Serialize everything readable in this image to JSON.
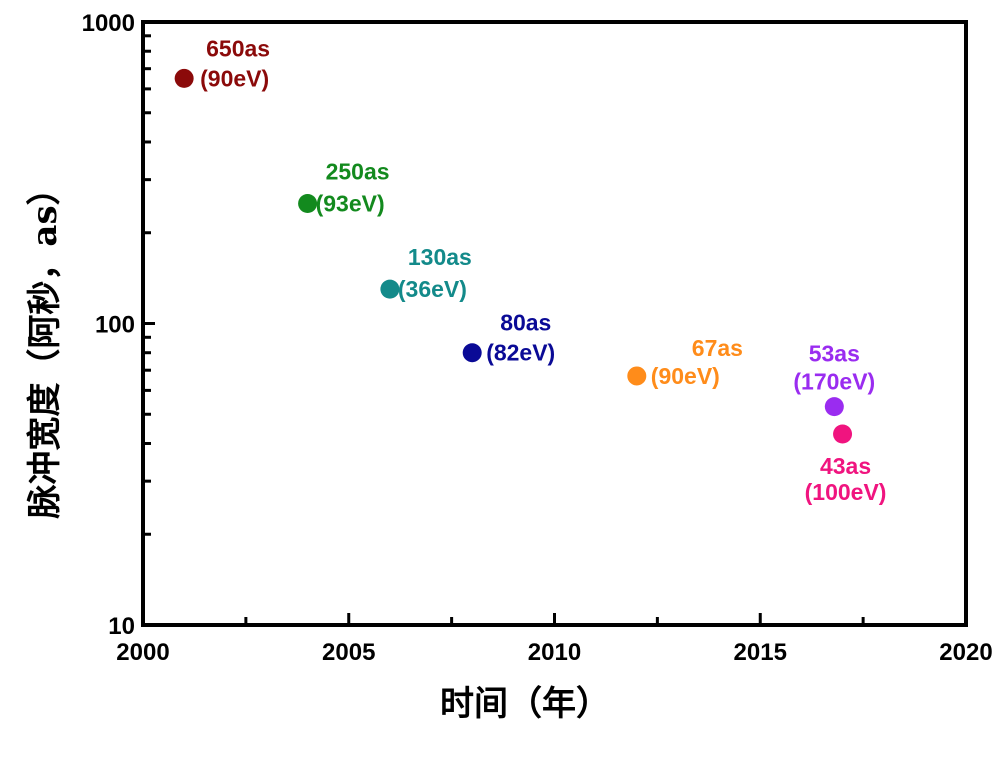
{
  "chart_data": {
    "type": "scatter",
    "title": "",
    "xlabel": "时间（年）",
    "ylabel": "脉冲宽度（阿秒，as）",
    "xlim": [
      2000,
      2020
    ],
    "ylim": [
      10,
      1000
    ],
    "yscale": "log",
    "grid": false,
    "xticks": [
      "2000",
      "2005",
      "2010",
      "2015",
      "2020"
    ],
    "yticks": [
      "10",
      "100",
      "1000"
    ],
    "points": [
      {
        "x": 2001,
        "y": 650,
        "label": "650as",
        "sublabel": "(90eV)",
        "color": "#8b0a0a"
      },
      {
        "x": 2004,
        "y": 250,
        "label": "250as",
        "sublabel": "(93eV)",
        "color": "#138a1e"
      },
      {
        "x": 2006,
        "y": 130,
        "label": "130as",
        "sublabel": "(36eV)",
        "color": "#138a8a"
      },
      {
        "x": 2008,
        "y": 80,
        "label": "80as",
        "sublabel": "(82eV)",
        "color": "#0a0a96"
      },
      {
        "x": 2012,
        "y": 67,
        "label": "67as",
        "sublabel": "(90eV)",
        "color": "#ff8c1a"
      },
      {
        "x": 2016.8,
        "y": 53,
        "label": "53as",
        "sublabel": "(170eV)",
        "color": "#9a2cf0"
      },
      {
        "x": 2017,
        "y": 43,
        "label": "43as",
        "sublabel": "(100eV)",
        "color": "#f0147f"
      }
    ]
  }
}
